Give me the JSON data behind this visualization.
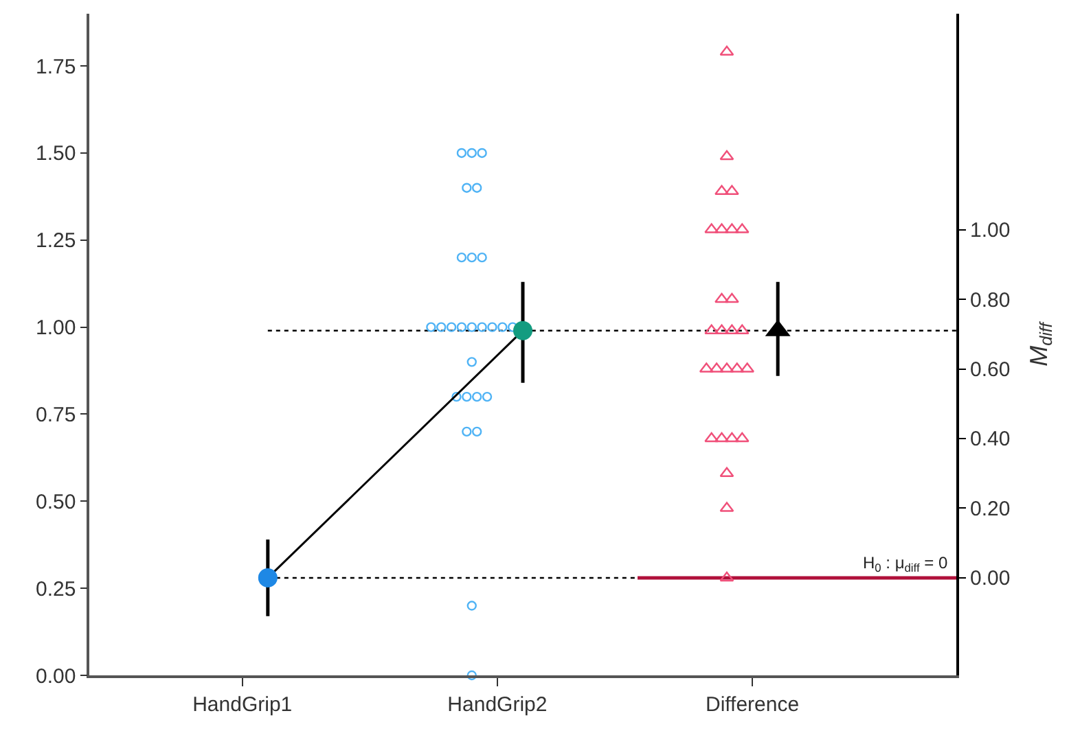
{
  "chart_data": {
    "type": "scatter",
    "categories": [
      "HandGrip1",
      "HandGrip2",
      "Difference"
    ],
    "ylim": [
      0,
      1.9
    ],
    "yticks": [
      {
        "value": 0,
        "label": "0.00"
      },
      {
        "value": 0.25,
        "label": "0.25"
      },
      {
        "value": 0.5,
        "label": "0.50"
      },
      {
        "value": 0.75,
        "label": "0.75"
      },
      {
        "value": 1,
        "label": "1.00"
      },
      {
        "value": 1.25,
        "label": "1.25"
      },
      {
        "value": 1.5,
        "label": "1.50"
      },
      {
        "value": 1.75,
        "label": "1.75"
      }
    ],
    "y2lim": [
      -0.28,
      1.62
    ],
    "y2ticks": [
      {
        "value": 0,
        "label": "0.00"
      },
      {
        "value": 0.2,
        "label": "0.20"
      },
      {
        "value": 0.4,
        "label": "0.40"
      },
      {
        "value": 0.6,
        "label": "0.60"
      },
      {
        "value": 0.8,
        "label": "0.80"
      },
      {
        "value": 1,
        "label": "1.00"
      }
    ],
    "y2label": "M$_{diff}$",
    "grid": false,
    "series": [
      {
        "type": "scatter",
        "marker": "circle",
        "color": "#4fb3f5",
        "x": [
          "HandGrip2",
          "HandGrip2",
          "HandGrip2",
          "HandGrip2",
          "HandGrip2",
          "HandGrip2",
          "HandGrip2",
          "HandGrip2",
          "HandGrip2",
          "HandGrip2",
          "HandGrip2",
          "HandGrip2",
          "HandGrip2",
          "HandGrip2",
          "HandGrip2",
          "HandGrip2",
          "HandGrip2",
          "HandGrip2",
          "HandGrip2",
          "HandGrip2",
          "HandGrip2",
          "HandGrip2",
          "HandGrip2",
          "HandGrip2",
          "HandGrip2",
          "HandGrip2"
        ],
        "values": [
          1.5,
          1.5,
          1.5,
          1.4,
          1.4,
          1.2,
          1.2,
          1.2,
          1.0,
          1.0,
          1.0,
          1.0,
          1.0,
          1.0,
          1.0,
          1.0,
          1.0,
          0.9,
          0.8,
          0.8,
          0.8,
          0.8,
          0.7,
          0.7,
          0.2,
          0.0
        ]
      },
      {
        "type": "scatter",
        "marker": "triangle",
        "color": "#f0507a",
        "axis": "y2",
        "x": [
          "Difference",
          "Difference",
          "Difference",
          "Difference",
          "Difference",
          "Difference",
          "Difference",
          "Difference",
          "Difference",
          "Difference",
          "Difference",
          "Difference",
          "Difference",
          "Difference",
          "Difference",
          "Difference",
          "Difference",
          "Difference",
          "Difference",
          "Difference",
          "Difference",
          "Difference",
          "Difference",
          "Difference",
          "Difference",
          "Difference"
        ],
        "values": [
          1.51,
          1.21,
          1.11,
          1.11,
          1.0,
          1.0,
          1.0,
          1.0,
          0.8,
          0.8,
          0.71,
          0.71,
          0.71,
          0.71,
          0.6,
          0.6,
          0.6,
          0.6,
          0.6,
          0.4,
          0.4,
          0.4,
          0.4,
          0.3,
          0.2,
          0.0
        ]
      },
      {
        "type": "line",
        "marker": "circle",
        "color": "#000000",
        "colors": [
          "#1e88e5",
          "#139c80"
        ],
        "x": [
          "HandGrip1",
          "HandGrip2"
        ],
        "values": [
          0.28,
          0.99
        ],
        "errors": [
          [
            0.17,
            0.39
          ],
          [
            0.84,
            1.13
          ]
        ]
      },
      {
        "type": "scatter",
        "marker": "triangle",
        "color": "#000000",
        "axis": "y2",
        "x": [
          "Difference"
        ],
        "values": [
          0.71
        ],
        "errors": [
          [
            0.58,
            0.85
          ]
        ]
      }
    ],
    "ref_lines": [
      {
        "axis": "y",
        "value": 0.28,
        "line_style": "dotted",
        "color": "#000000"
      },
      {
        "axis": "y",
        "value": 0.99,
        "line_style": "dotted",
        "color": "#000000"
      },
      {
        "axis": "y2",
        "value": 0,
        "line_style": "solid",
        "color": "#b0103a",
        "label": "H$_{0}$ : μ$_{diff}$ = 0"
      }
    ]
  }
}
